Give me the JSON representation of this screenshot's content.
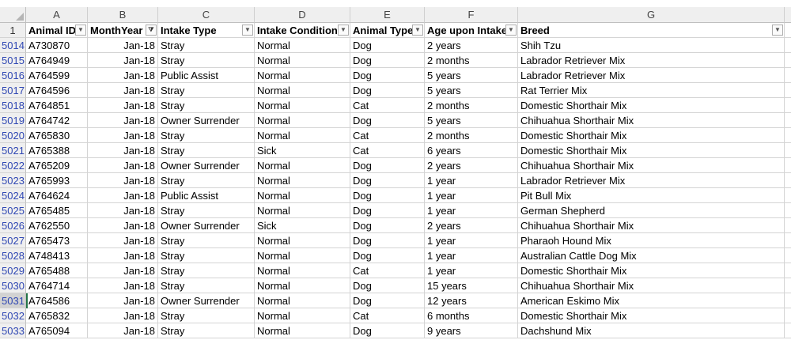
{
  "columns": [
    "A",
    "B",
    "C",
    "D",
    "E",
    "F",
    "G"
  ],
  "headers": [
    "Animal ID",
    "MonthYear",
    "Intake Type",
    "Intake Condition",
    "Animal Type",
    "Age upon Intake",
    "Breed"
  ],
  "header_row_number": "1",
  "icons": {
    "filter": "dropdown-arrow-icon",
    "filter_active": "filter-applied-icon"
  },
  "rows": [
    {
      "n": "5014",
      "cells": [
        "A730870",
        "Jan-18",
        "Stray",
        "Normal",
        "Dog",
        "2 years",
        "Shih Tzu"
      ]
    },
    {
      "n": "5015",
      "cells": [
        "A764949",
        "Jan-18",
        "Stray",
        "Normal",
        "Dog",
        "2 months",
        "Labrador Retriever Mix"
      ]
    },
    {
      "n": "5016",
      "cells": [
        "A764599",
        "Jan-18",
        "Public Assist",
        "Normal",
        "Dog",
        "5 years",
        "Labrador Retriever Mix"
      ]
    },
    {
      "n": "5017",
      "cells": [
        "A764596",
        "Jan-18",
        "Stray",
        "Normal",
        "Dog",
        "5 years",
        "Rat Terrier Mix"
      ]
    },
    {
      "n": "5018",
      "cells": [
        "A764851",
        "Jan-18",
        "Stray",
        "Normal",
        "Cat",
        "2 months",
        "Domestic Shorthair Mix"
      ]
    },
    {
      "n": "5019",
      "cells": [
        "A764742",
        "Jan-18",
        "Owner Surrender",
        "Normal",
        "Dog",
        "5 years",
        "Chihuahua Shorthair Mix"
      ]
    },
    {
      "n": "5020",
      "cells": [
        "A765830",
        "Jan-18",
        "Stray",
        "Normal",
        "Cat",
        "2 months",
        "Domestic Shorthair Mix"
      ]
    },
    {
      "n": "5021",
      "cells": [
        "A765388",
        "Jan-18",
        "Stray",
        "Sick",
        "Cat",
        "6 years",
        "Domestic Shorthair Mix"
      ]
    },
    {
      "n": "5022",
      "cells": [
        "A765209",
        "Jan-18",
        "Owner Surrender",
        "Normal",
        "Dog",
        "2 years",
        "Chihuahua Shorthair Mix"
      ]
    },
    {
      "n": "5023",
      "cells": [
        "A765993",
        "Jan-18",
        "Stray",
        "Normal",
        "Dog",
        "1 year",
        "Labrador Retriever Mix"
      ]
    },
    {
      "n": "5024",
      "cells": [
        "A764624",
        "Jan-18",
        "Public Assist",
        "Normal",
        "Dog",
        "1 year",
        "Pit Bull Mix"
      ]
    },
    {
      "n": "5025",
      "cells": [
        "A765485",
        "Jan-18",
        "Stray",
        "Normal",
        "Dog",
        "1 year",
        "German Shepherd"
      ]
    },
    {
      "n": "5026",
      "cells": [
        "A762550",
        "Jan-18",
        "Owner Surrender",
        "Sick",
        "Dog",
        "2 years",
        "Chihuahua Shorthair Mix"
      ]
    },
    {
      "n": "5027",
      "cells": [
        "A765473",
        "Jan-18",
        "Stray",
        "Normal",
        "Dog",
        "1 year",
        "Pharaoh Hound Mix"
      ]
    },
    {
      "n": "5028",
      "cells": [
        "A748413",
        "Jan-18",
        "Stray",
        "Normal",
        "Dog",
        "1 year",
        "Australian Cattle Dog Mix"
      ]
    },
    {
      "n": "5029",
      "cells": [
        "A765488",
        "Jan-18",
        "Stray",
        "Normal",
        "Cat",
        "1 year",
        "Domestic Shorthair Mix"
      ]
    },
    {
      "n": "5030",
      "cells": [
        "A764714",
        "Jan-18",
        "Stray",
        "Normal",
        "Dog",
        "15 years",
        "Chihuahua Shorthair Mix"
      ]
    },
    {
      "n": "5031",
      "cells": [
        "A764586",
        "Jan-18",
        "Owner Surrender",
        "Normal",
        "Dog",
        "12 years",
        "American Eskimo Mix"
      ]
    },
    {
      "n": "5032",
      "cells": [
        "A765832",
        "Jan-18",
        "Stray",
        "Normal",
        "Cat",
        "6 months",
        "Domestic Shorthair Mix"
      ]
    },
    {
      "n": "5033",
      "cells": [
        "A765094",
        "Jan-18",
        "Stray",
        "Normal",
        "Dog",
        "9 years",
        "Dachshund Mix"
      ]
    }
  ]
}
